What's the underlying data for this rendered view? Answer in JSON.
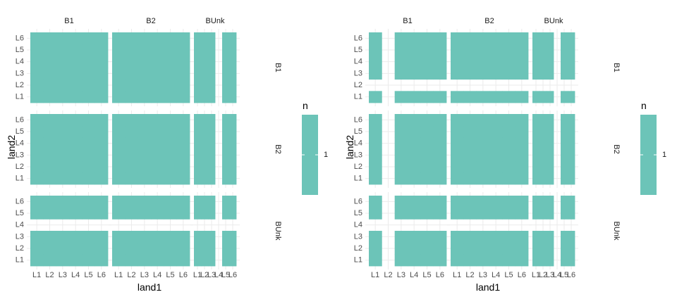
{
  "colors": {
    "tile": "#6cc4b8",
    "grid": "#ebebeb",
    "background": "#ffffff"
  },
  "chart_data": [
    {
      "type": "heatmap",
      "facet_cols": [
        "B1",
        "B2",
        "BUnk"
      ],
      "facet_rows": [
        "B1",
        "B2",
        "BUnk"
      ],
      "x_levels": [
        "L1",
        "L2",
        "L3",
        "L4",
        "L5",
        "L6"
      ],
      "y_levels": [
        "L1",
        "L2",
        "L3",
        "L4",
        "L5",
        "L6"
      ],
      "xlabel": "land1",
      "ylabel": "land2",
      "legend": {
        "title": "n",
        "value": "1",
        "placement": "right"
      },
      "fill_value": 1,
      "present": {
        "x": {
          "B1": [
            "L1",
            "L2",
            "L3",
            "L4",
            "L5",
            "L6"
          ],
          "B2": [
            "L1",
            "L2",
            "L3",
            "L4",
            "L5",
            "L6"
          ],
          "BUnk": [
            "L1",
            "L2",
            "L3",
            "L5",
            "L6"
          ]
        },
        "y": {
          "B1": [
            "L1",
            "L2",
            "L3",
            "L4",
            "L5",
            "L6"
          ],
          "B2": [
            "L1",
            "L2",
            "L3",
            "L4",
            "L5",
            "L6"
          ],
          "BUnk": [
            "L1",
            "L2",
            "L3",
            "L5",
            "L6"
          ]
        }
      }
    },
    {
      "type": "heatmap",
      "facet_cols": [
        "B1",
        "B2",
        "BUnk"
      ],
      "facet_rows": [
        "B1",
        "B2",
        "BUnk"
      ],
      "x_levels": [
        "L1",
        "L2",
        "L3",
        "L4",
        "L5",
        "L6"
      ],
      "y_levels": [
        "L1",
        "L2",
        "L3",
        "L4",
        "L5",
        "L6"
      ],
      "xlabel": "land1",
      "ylabel": "land2",
      "legend": {
        "title": "n",
        "value": "1",
        "placement": "right"
      },
      "fill_value": 1,
      "present": {
        "x": {
          "B1": [
            "L1",
            "L3",
            "L4",
            "L5",
            "L6"
          ],
          "B2": [
            "L1",
            "L2",
            "L3",
            "L4",
            "L5",
            "L6"
          ],
          "BUnk": [
            "L1",
            "L2",
            "L3",
            "L5",
            "L6"
          ]
        },
        "y": {
          "B1": [
            "L1",
            "L3",
            "L4",
            "L5",
            "L6"
          ],
          "B2": [
            "L1",
            "L2",
            "L3",
            "L4",
            "L5",
            "L6"
          ],
          "BUnk": [
            "L1",
            "L2",
            "L3",
            "L5",
            "L6"
          ]
        }
      }
    }
  ]
}
